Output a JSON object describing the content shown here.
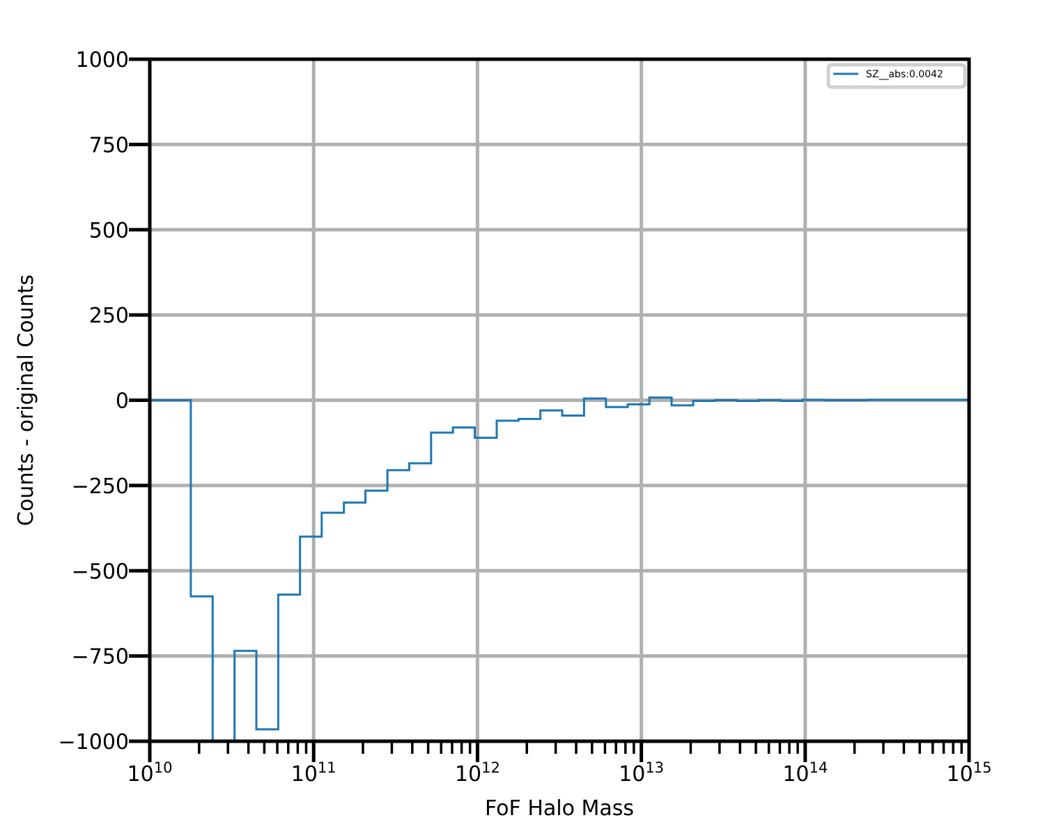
{
  "chart_data": {
    "type": "line",
    "step": true,
    "xscale": "log",
    "xlabel": "FoF Halo Mass",
    "ylabel": "Counts - original Counts",
    "xlim": [
      10000000000.0,
      1000000000000000.0
    ],
    "ylim": [
      -1000,
      1000
    ],
    "grid": true,
    "legend_position": "top-right",
    "x_ticks": [
      {
        "base": "10",
        "exp": "10"
      },
      {
        "base": "10",
        "exp": "11"
      },
      {
        "base": "10",
        "exp": "12"
      },
      {
        "base": "10",
        "exp": "13"
      },
      {
        "base": "10",
        "exp": "14"
      },
      {
        "base": "10",
        "exp": "15"
      }
    ],
    "y_ticks": [
      "1000",
      "750",
      "500",
      "250",
      "0",
      "−250",
      "−500",
      "−750",
      "−1000"
    ],
    "y_tick_values": [
      1000,
      750,
      500,
      250,
      0,
      -250,
      -500,
      -750,
      -1000
    ],
    "series": [
      {
        "name": "SZ__abs:0.0042",
        "color": "#1f77b4",
        "bin_edges": [
          10000000000.0,
          17800000000.0,
          24200000000.0,
          32900000000.0,
          44700000000.0,
          60800000000.0,
          82600000000.0,
          112000000000.0,
          153000000000.0,
          207000000000.0,
          282000000000.0,
          383000000000.0,
          521000000000.0,
          708000000000.0,
          962000000000.0,
          1310000000000.0,
          1780000000000.0,
          2420000000000.0,
          3290000000000.0,
          4470000000000.0,
          6080000000000.0,
          8260000000000.0,
          11200000000000.0,
          15300000000000.0,
          20700000000000.0,
          28200000000000.0,
          38300000000000.0,
          52100000000000.0,
          70800000000000.0,
          96200000000000.0,
          131000000000000.0,
          178000000000000.0,
          242000000000000.0,
          1000000000000000.0
        ],
        "values": [
          0,
          -575,
          -1050,
          -735,
          -965,
          -570,
          -400,
          -330,
          -300,
          -265,
          -205,
          -185,
          -95,
          -80,
          -110,
          -60,
          -55,
          -30,
          -45,
          5,
          -20,
          -12,
          8,
          -15,
          -2,
          0,
          -2,
          0,
          -2,
          1,
          0,
          0,
          1
        ]
      }
    ]
  }
}
